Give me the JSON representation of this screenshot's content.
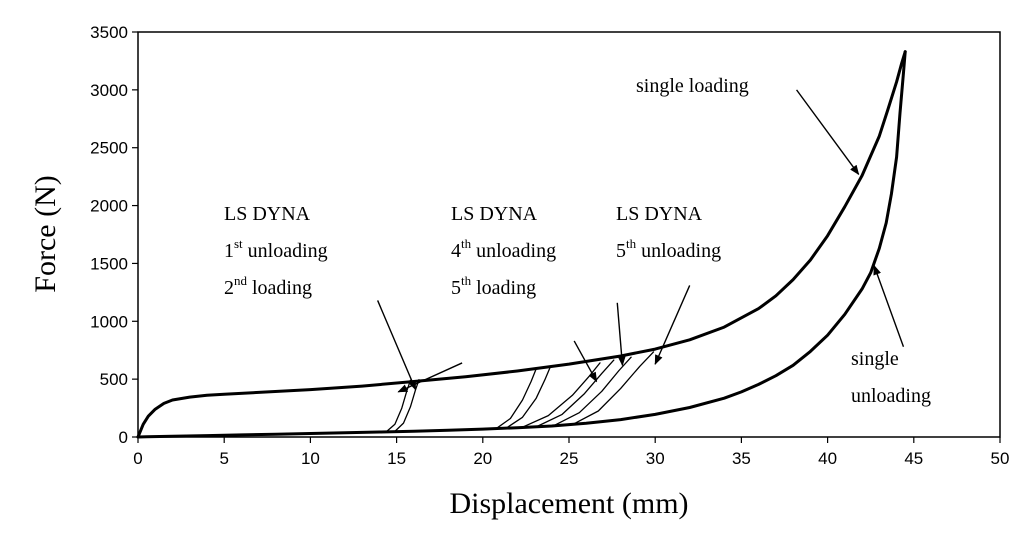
{
  "chart_data": {
    "type": "line",
    "title": "",
    "xlabel": "Displacement (mm)",
    "ylabel": "Force (N)",
    "xlim": [
      0,
      50
    ],
    "ylim": [
      0,
      3500
    ],
    "xticks": [
      0,
      5,
      10,
      15,
      20,
      25,
      30,
      35,
      40,
      45,
      50
    ],
    "yticks": [
      0,
      500,
      1000,
      1500,
      2000,
      2500,
      3000,
      3500
    ],
    "grid": false,
    "legend": "none",
    "series": [
      {
        "x": [
          0,
          0.3,
          0.6,
          1,
          1.5,
          2,
          3,
          4,
          5,
          7,
          10,
          13,
          16,
          19,
          22,
          25,
          28,
          30,
          32,
          34,
          36,
          37,
          38,
          39,
          40,
          41,
          42,
          43,
          43.5,
          44,
          44.3,
          44.5
        ],
        "y": [
          0,
          110,
          180,
          240,
          290,
          320,
          345,
          360,
          370,
          385,
          410,
          440,
          480,
          520,
          570,
          630,
          700,
          760,
          840,
          950,
          1110,
          1220,
          1360,
          1530,
          1740,
          1990,
          2260,
          2600,
          2830,
          3070,
          3230,
          3330
        ]
      },
      {
        "x": [
          44.5,
          44.4,
          44.2,
          44,
          43.7,
          43.4,
          43,
          42.5,
          42,
          41,
          40,
          39,
          38,
          37,
          36,
          35,
          34,
          32,
          30,
          28,
          26,
          24,
          22,
          20,
          18,
          16,
          14,
          12,
          10,
          8,
          6,
          4,
          2,
          0.5,
          0
        ],
        "y": [
          3330,
          3150,
          2800,
          2420,
          2100,
          1850,
          1630,
          1420,
          1280,
          1060,
          880,
          740,
          620,
          530,
          455,
          390,
          335,
          255,
          195,
          150,
          118,
          95,
          80,
          68,
          58,
          50,
          43,
          36,
          30,
          24,
          18,
          12,
          6,
          2,
          0
        ]
      },
      {
        "x": [
          14.4,
          14.9,
          15.3,
          15.6,
          15.8
        ],
        "y": [
          45,
          110,
          250,
          400,
          490
        ]
      },
      {
        "x": [
          14.9,
          15.4,
          15.8,
          16.1,
          16.3
        ],
        "y": [
          48,
          120,
          260,
          410,
          495
        ]
      },
      {
        "x": [
          20.8,
          21.6,
          22.3,
          22.8,
          23.1
        ],
        "y": [
          75,
          160,
          320,
          480,
          590
        ]
      },
      {
        "x": [
          21.4,
          22.3,
          23.1,
          23.6,
          23.9
        ],
        "y": [
          80,
          170,
          335,
          495,
          600
        ]
      },
      {
        "x": [
          22.3,
          23.8,
          25.2,
          26.2,
          26.8
        ],
        "y": [
          85,
          185,
          360,
          530,
          640
        ]
      },
      {
        "x": [
          23.2,
          24.6,
          25.9,
          26.9,
          27.6
        ],
        "y": [
          95,
          195,
          375,
          550,
          665
        ]
      },
      {
        "x": [
          24.2,
          25.6,
          26.9,
          27.9,
          28.6
        ],
        "y": [
          105,
          210,
          395,
          575,
          690
        ]
      },
      {
        "x": [
          25.3,
          26.7,
          28.0,
          29.1,
          29.9
        ],
        "y": [
          115,
          225,
          420,
          610,
          735
        ]
      }
    ],
    "annotations": [
      {
        "lines": [
          "single loading"
        ],
        "arrow_from": [
          38.2,
          3000
        ],
        "arrow_to": [
          41.8,
          2270
        ]
      },
      {
        "lines": [
          "single",
          "unloading"
        ],
        "arrow_from": [
          44.4,
          780
        ],
        "arrow_to": [
          42.7,
          1480
        ]
      },
      {
        "lines": [
          "LS DYNA",
          "1st unloading",
          "2nd loading"
        ],
        "arrow_from": [
          13.9,
          1180
        ],
        "arrow_to": [
          16.1,
          410
        ],
        "arrow_from_2": [
          18.8,
          640
        ],
        "arrow_to_2": [
          15.1,
          390
        ]
      },
      {
        "lines": [
          "LS DYNA",
          "4th unloading",
          "5th loading"
        ],
        "arrow_from": [
          27.8,
          1160
        ],
        "arrow_to": [
          28.1,
          620
        ],
        "arrow_from_2": [
          25.3,
          830
        ],
        "arrow_to_2": [
          26.6,
          480
        ]
      },
      {
        "lines": [
          "LS DYNA",
          "5th unloading"
        ],
        "arrow_from": [
          32.0,
          1310
        ],
        "arrow_to": [
          30.0,
          630
        ]
      }
    ]
  }
}
